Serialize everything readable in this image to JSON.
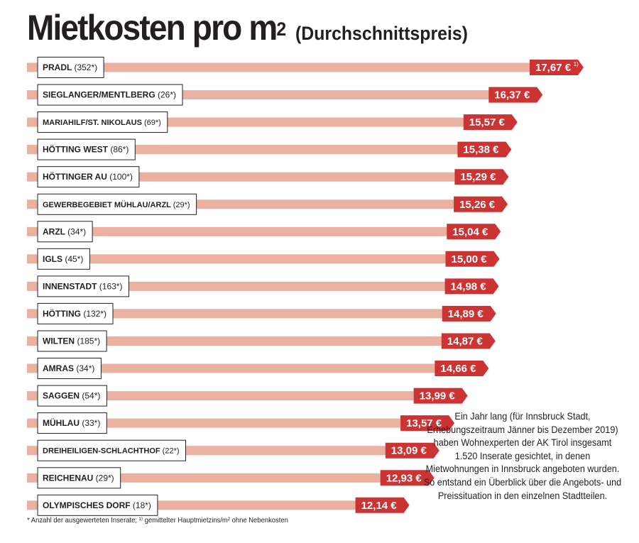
{
  "chart_data": {
    "type": "bar",
    "orientation": "horizontal",
    "title": "Mietkosten pro m²",
    "subtitle": "(Durchschnittspreis)",
    "categories": [
      {
        "name": "PRADL",
        "count": "(352*)"
      },
      {
        "name": "SIEGLANGER/MENTLBERG",
        "count": "(26*)"
      },
      {
        "name": "MARIAHILF/ST. NIKOLAUS",
        "count": "(69*)"
      },
      {
        "name": "HÖTTING WEST",
        "count": "(86*)"
      },
      {
        "name": "HÖTTINGER AU",
        "count": "(100*)"
      },
      {
        "name": "GEWERBEGEBIET MÜHLAU/ARZL",
        "count": "(29*)"
      },
      {
        "name": "ARZL",
        "count": "(34*)"
      },
      {
        "name": "IGLS",
        "count": "(45*)"
      },
      {
        "name": "INNENSTADT",
        "count": "(163*)"
      },
      {
        "name": "HÖTTING",
        "count": "(132*)"
      },
      {
        "name": "WILTEN",
        "count": "(185*)"
      },
      {
        "name": "AMRAS",
        "count": "(34*)"
      },
      {
        "name": "SAGGEN",
        "count": "(54*)"
      },
      {
        "name": "MÜHLAU",
        "count": "(33*)"
      },
      {
        "name": "DREIHEILIGEN-SCHLACHTHOF",
        "count": "(22*)"
      },
      {
        "name": "REICHENAU",
        "count": "(29*)"
      },
      {
        "name": "OLYMPISCHES DORF",
        "count": "(18*)"
      }
    ],
    "values": [
      17.67,
      16.37,
      15.57,
      15.38,
      15.29,
      15.26,
      15.04,
      15.0,
      14.98,
      14.89,
      14.87,
      14.66,
      13.99,
      13.57,
      13.09,
      12.93,
      12.14
    ],
    "value_labels": [
      "17,67 €",
      "16,37 €",
      "15,57 €",
      "15,38 €",
      "15,29 €",
      "15,26 €",
      "15,04 €",
      "15,00 €",
      "14,98 €",
      "14,89 €",
      "14,87 €",
      "14,66 €",
      "13,99 €",
      "13,57 €",
      "13,09 €",
      "12,93 €",
      "12,14 €"
    ],
    "first_value_marker": "1)",
    "unit": "€ pro m²",
    "xlim": [
      0,
      17.67
    ],
    "colors": {
      "bar": "#eab0a0",
      "value_tag": "#cc3333",
      "label_border": "#231f20",
      "text": "#231f20"
    }
  },
  "title_main": "Mietkosten pro m",
  "title_sup": "2",
  "title_sub": "(Durchschnittspreis)",
  "footnote": "* Anzahl der ausgewerteten Inserate; ¹⁾ gemittelter Hauptmietzins/m² ohne Nebenkosten",
  "side_note": "Ein Jahr lang (für Innsbruck Stadt, Erhebungszeitraum Jänner bis Dezember 2019) haben Wohnexperten der AK Tirol insgesamt 1.520 Inserate gesichtet, in denen Mietwohnungen in Innsbruck angeboten wurden. So entstand ein Überblick über die Angebots- und Preissituation in den einzelnen Stadtteilen."
}
